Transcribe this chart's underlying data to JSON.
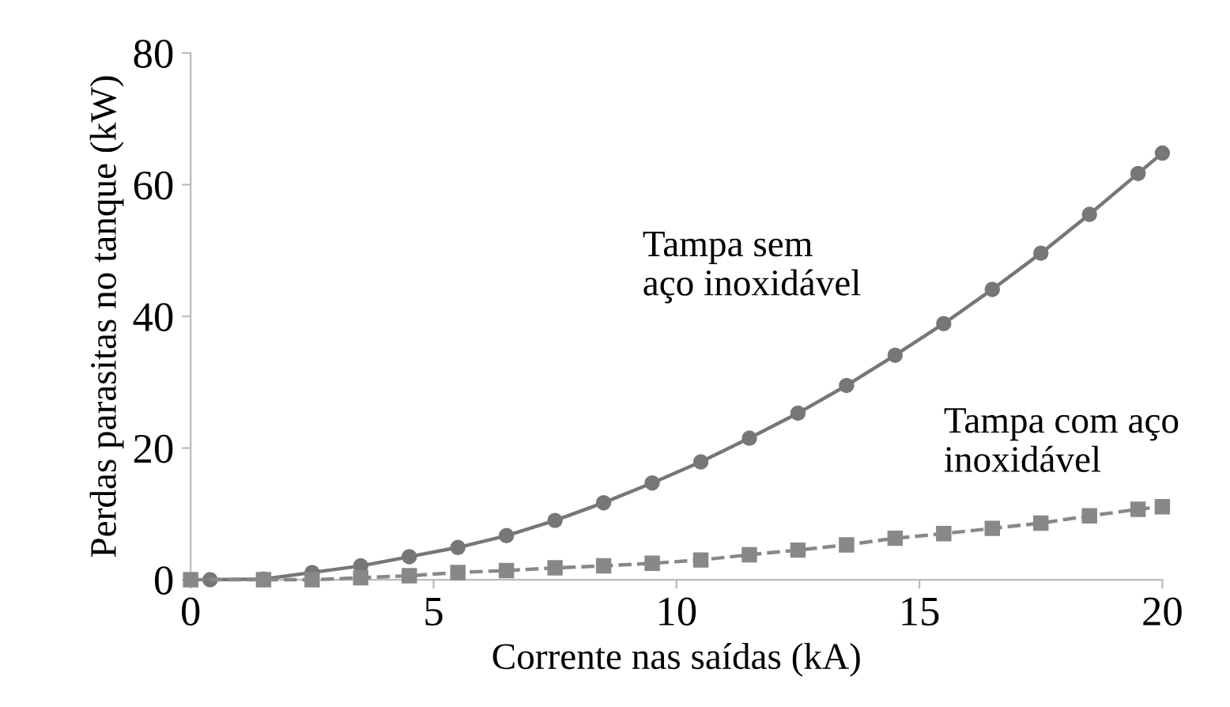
{
  "chart_data": {
    "type": "line",
    "xlabel": "Corrente nas saídas (kA)",
    "ylabel": "Perdas parasitas no tanque (kW)",
    "xlim": [
      0,
      20
    ],
    "ylim": [
      0,
      80
    ],
    "xticks": [
      0,
      5,
      10,
      15,
      20
    ],
    "yticks": [
      0,
      20,
      40,
      60,
      80
    ],
    "grid": false,
    "legend": false,
    "series": [
      {
        "name": "Tampa sem\naço inoxidável",
        "color": "#777777",
        "marker": "circle",
        "line_style": "solid",
        "x": [
          0.4,
          1.5,
          2.5,
          3.5,
          4.5,
          5.5,
          6.5,
          7.5,
          8.5,
          9.5,
          10.5,
          11.5,
          12.5,
          13.5,
          14.5,
          15.5,
          16.5,
          17.5,
          18.5,
          19.5,
          20
        ],
        "values": [
          0,
          0.1,
          1.1,
          2.1,
          3.5,
          4.9,
          6.7,
          9.0,
          11.7,
          14.7,
          17.9,
          21.5,
          25.3,
          29.5,
          34.1,
          38.9,
          44.1,
          49.6,
          55.5,
          61.7,
          64.8
        ]
      },
      {
        "name": "Tampa com aço\ninoxidável",
        "color": "#888888",
        "marker": "square",
        "line_style": "dashed",
        "x": [
          0,
          1.5,
          2.5,
          3.5,
          4.5,
          5.5,
          6.5,
          7.5,
          8.5,
          9.5,
          10.5,
          11.5,
          12.5,
          13.5,
          14.5,
          15.5,
          16.5,
          17.5,
          18.5,
          19.5,
          20
        ],
        "values": [
          0,
          0,
          0,
          0.3,
          0.6,
          1.1,
          1.4,
          1.8,
          2.1,
          2.5,
          3.0,
          3.8,
          4.5,
          5.3,
          6.3,
          7.0,
          7.8,
          8.6,
          9.7,
          10.7,
          11.1
        ]
      }
    ]
  }
}
